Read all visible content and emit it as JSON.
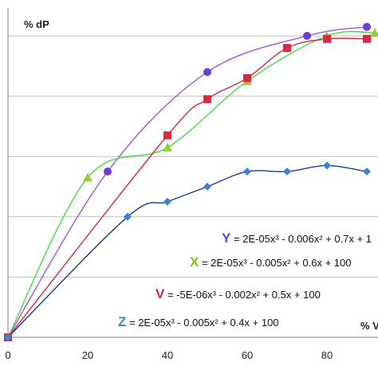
{
  "chart_data": {
    "type": "scatter",
    "xlabel": "% V",
    "ylabel": "% dP",
    "xlim": [
      0,
      95
    ],
    "ylim": [
      0,
      100
    ],
    "x_ticks": [
      0,
      20,
      40,
      60,
      80
    ],
    "grid": "horizontal",
    "series": [
      {
        "name": "Y",
        "marker": "circle",
        "color": "#6b3fd6",
        "curve_color": "#9b59d9",
        "points": [
          [
            0,
            0
          ],
          [
            25,
            55
          ],
          [
            50,
            88
          ],
          [
            75,
            100
          ],
          [
            90,
            103
          ]
        ],
        "equation_letter": "Y",
        "equation": " = 2E-05x³ - 0.006x² + 0.7x + 1"
      },
      {
        "name": "X",
        "marker": "triangle",
        "color": "#9acd32",
        "curve_color": "#44dd44",
        "points": [
          [
            0,
            0
          ],
          [
            20,
            53
          ],
          [
            40,
            63
          ],
          [
            60,
            85
          ],
          [
            80,
            100
          ],
          [
            92,
            101
          ]
        ],
        "equation_letter": "X",
        "equation": " = 2E-05x³ - 0.005x² + 0.6x + 100"
      },
      {
        "name": "V",
        "marker": "square",
        "color": "#d42a43",
        "curve_color": "#d42a43",
        "points": [
          [
            0,
            0
          ],
          [
            40,
            67
          ],
          [
            50,
            79
          ],
          [
            60,
            86
          ],
          [
            70,
            96
          ],
          [
            80,
            99
          ],
          [
            90,
            99
          ]
        ],
        "equation_letter": "V",
        "equation": " = -5E-06x³ - 0.002x² + 0.5x + 100"
      },
      {
        "name": "Z",
        "marker": "diamond",
        "color": "#3f7fd6",
        "curve_color": "#1f3a99",
        "points": [
          [
            0,
            0
          ],
          [
            30,
            40
          ],
          [
            40,
            45
          ],
          [
            50,
            50
          ],
          [
            60,
            55
          ],
          [
            70,
            55
          ],
          [
            80,
            57
          ],
          [
            90,
            55
          ]
        ],
        "equation_letter": "Z",
        "equation": " = 2E-05x³ - 0.005x² + 0.4x + 100"
      }
    ]
  }
}
